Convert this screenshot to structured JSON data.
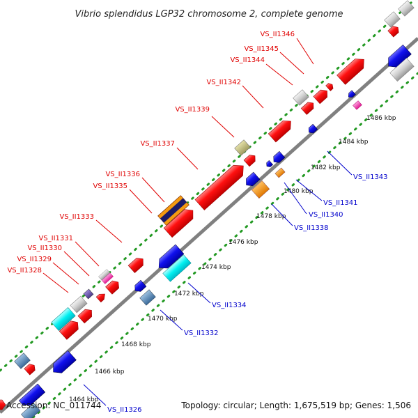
{
  "title": "Vibrio splendidus LGP32 chromosome 2, complete genome",
  "accession_text": "Accession: NC_011744",
  "topology_text": "Topology: circular; Length: 1,675,519 bp; Genes: 1,506",
  "colors": {
    "backbone": "#808080",
    "tick_dots": "#229922",
    "forward_label": "#e00000",
    "reverse_label": "#0000cc"
  },
  "ticks": [
    "1464 kbp",
    "1466 kbp",
    "1468 kbp",
    "1470 kbp",
    "1472 kbp",
    "1474 kbp",
    "1476 kbp",
    "1478 kbp",
    "1480 kbp",
    "1482 kbp",
    "1484 kbp",
    "1486 kbp"
  ],
  "forward_labels": [
    "VS_II1328",
    "VS_II1329",
    "VS_II1330",
    "VS_II1331",
    "VS_II1333",
    "VS_II1335",
    "VS_II1336",
    "VS_II1337",
    "VS_II1339",
    "VS_II1342",
    "VS_II1344",
    "VS_II1345",
    "VS_II1346"
  ],
  "reverse_labels": [
    "VS_II1326",
    "VS_II1332",
    "VS_II1334",
    "VS_II1338",
    "VS_II1340",
    "VS_II1341",
    "VS_II1343"
  ]
}
